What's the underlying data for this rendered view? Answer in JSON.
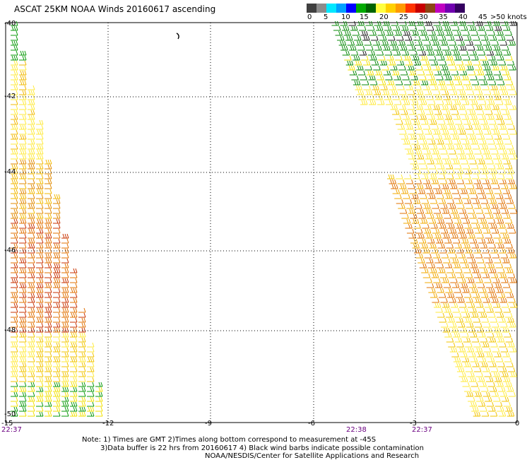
{
  "title": "ASCAT 25KM NOAA Winds 20160617 ascending",
  "legend": {
    "colors": [
      "#404040",
      "#8c8c8c",
      "#00e8ff",
      "#00a0ff",
      "#0000ff",
      "#00aa00",
      "#006400",
      "#ffff40",
      "#ffd000",
      "#ff9a00",
      "#ff3300",
      "#c80000",
      "#8b4513",
      "#c000c0",
      "#7000b0",
      "#350060"
    ],
    "labels": [
      "0",
      "5",
      "10",
      "15",
      "20",
      "25",
      "30",
      "35",
      "40",
      "45",
      ">50 knots"
    ]
  },
  "lat_labels": [
    "-40",
    "-42",
    "-44",
    "-46",
    "-48",
    "-50"
  ],
  "lon_labels": [
    "-15",
    "-12",
    "-9",
    "-6",
    "-3",
    "0"
  ],
  "time_labels": [
    "22:37",
    "22:38",
    "22:37"
  ],
  "notes": [
    "Note: 1) Times are GMT 2)Times along bottom correspond to measurement at -45S",
    "3)Data buffer is 22 hrs from 20160617 4) Black wind barbs indicate possible contamination",
    "NOAA/NESDIS/Center for Satellite Applications and Research"
  ]
}
